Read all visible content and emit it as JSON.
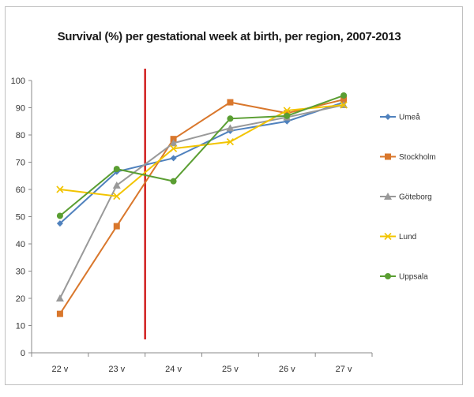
{
  "chart_data": {
    "type": "line",
    "title": "Survival (%)  per gestational week at birth, per region, 2007-2013",
    "categories": [
      "22 v",
      "23 v",
      "24 v",
      "25 v",
      "26 v",
      "27 v"
    ],
    "ylim": [
      0,
      100
    ],
    "yticks": [
      0,
      10,
      20,
      30,
      40,
      50,
      60,
      70,
      80,
      90,
      100
    ],
    "grid": false,
    "legend_position": "right",
    "reference_line": {
      "x": 23.5,
      "color": "#d11f1f"
    },
    "series": [
      {
        "name": "Umeå",
        "color": "#4f81bd",
        "marker": "diamond",
        "values": [
          47.5,
          66.5,
          71.5,
          81.5,
          85,
          92
        ]
      },
      {
        "name": "Stockholm",
        "color": "#d9772c",
        "marker": "square",
        "values": [
          14.3,
          46.5,
          78.5,
          92,
          88,
          93
        ]
      },
      {
        "name": "Göteborg",
        "color": "#999999",
        "marker": "triangle",
        "values": [
          20,
          61.5,
          77,
          82.5,
          86.5,
          91
        ]
      },
      {
        "name": "Lund",
        "color": "#f2c400",
        "marker": "x",
        "values": [
          60,
          57.5,
          75,
          77.5,
          89,
          91
        ]
      },
      {
        "name": "Uppsala",
        "color": "#5a9e32",
        "marker": "circle",
        "values": [
          50.3,
          67.5,
          63,
          86,
          87,
          94.5
        ]
      }
    ]
  }
}
